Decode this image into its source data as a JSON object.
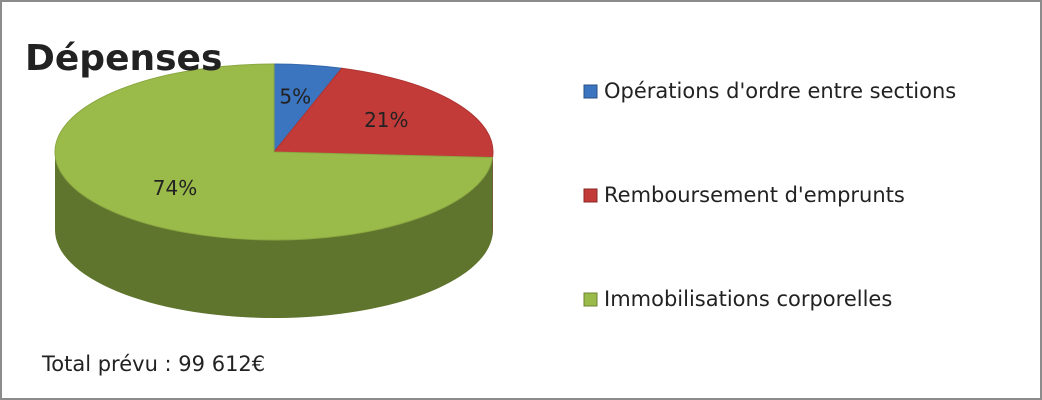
{
  "chart_data": {
    "type": "pie",
    "title": "Dépenses",
    "categories": [
      "Opérations d'ordre entre sections",
      "Remboursement d'emprunts",
      "Immobilisations corporelles"
    ],
    "values": [
      5,
      21,
      74
    ],
    "value_labels": [
      "5%",
      "21%",
      "74%"
    ],
    "colors": [
      "#3b74bf",
      "#c23b38",
      "#9abb49"
    ],
    "annotation": "Total prévu : 99 612€",
    "legend": "right"
  }
}
